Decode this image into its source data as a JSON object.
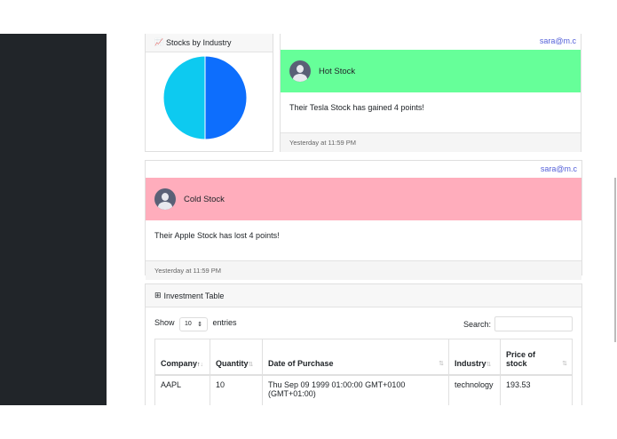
{
  "chart_card": {
    "title": "Stocks by Industry",
    "icon": "area-chart-icon"
  },
  "chart_data": {
    "type": "pie",
    "title": "Stocks by Industry",
    "slices": [
      {
        "label": "",
        "value": 50,
        "color": "#0d6efd"
      },
      {
        "label": "",
        "value": 50,
        "color": "#0dcaf0"
      }
    ]
  },
  "hot": {
    "email": "sara@m.c",
    "title": "Hot Stock",
    "message": "Their Tesla Stock has gained 4 points!",
    "time": "Yesterday at 11:59 PM",
    "color": "#66ff99"
  },
  "cold": {
    "email": "sara@m.c",
    "title": "Cold Stock",
    "message": "Their Apple Stock has lost 4 points!",
    "time": "Yesterday at 11:59 PM",
    "color": "#ffadbc"
  },
  "table": {
    "title": "Investment Table",
    "show": "Show",
    "entries_value": "10",
    "entries": "entries",
    "search_label": "Search:",
    "headers": [
      "Company",
      "Quantity",
      "Date of Purchase",
      "Industry",
      "Price of stock"
    ],
    "rows": [
      [
        "AAPL",
        "10",
        "Thu Sep 09 1999 01:00:00 GMT+0100 (GMT+01:00)",
        "technology",
        "193.53"
      ]
    ]
  }
}
